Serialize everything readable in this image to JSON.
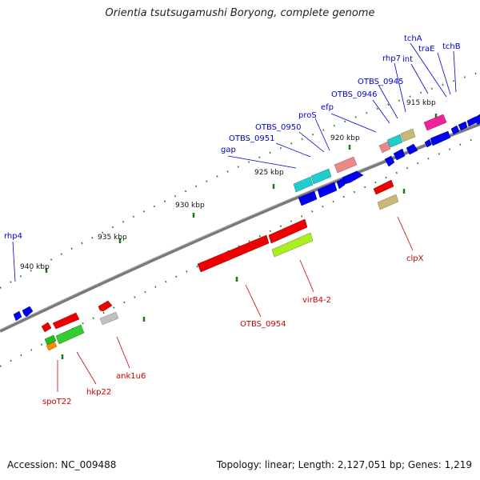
{
  "title": "Orientia tsutsugamushi Boryong, complete genome",
  "footer": {
    "accession": "Accession: NC_009488",
    "topology": "Topology: linear; Length: 2,127,051 bp; Genes: 1,219"
  },
  "colors": {
    "backbone": "#808080",
    "tick": "#1a7a1a",
    "blue_label": "#0000cc",
    "red_label": "#cc0000"
  },
  "ticks": [
    "915 kbp",
    "920 kbp",
    "925 kbp",
    "930 kbp",
    "935 kbp",
    "940 kbp"
  ],
  "gene_labels_top": [
    "rhp4",
    "gap",
    "OTBS_0951",
    "OTBS_0950",
    "proS",
    "efp",
    "OTBS_0946",
    "OTBS_0945",
    "rhp7",
    "int",
    "tchA",
    "traE",
    "tchB"
  ],
  "gene_labels_bottom": [
    "spoT22",
    "hkp22",
    "ank1u6",
    "OTBS_0954",
    "virB4-2",
    "clpX"
  ]
}
